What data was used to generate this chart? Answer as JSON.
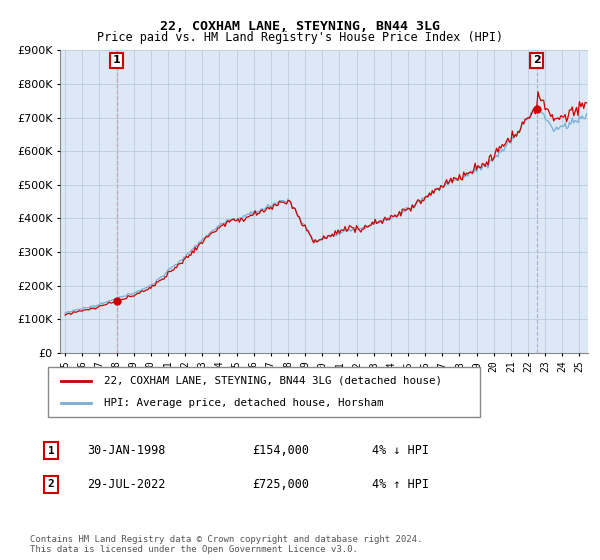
{
  "title": "22, COXHAM LANE, STEYNING, BN44 3LG",
  "subtitle": "Price paid vs. HM Land Registry's House Price Index (HPI)",
  "legend_entry1": "22, COXHAM LANE, STEYNING, BN44 3LG (detached house)",
  "legend_entry2": "HPI: Average price, detached house, Horsham",
  "annotation1_label": "1",
  "annotation1_date": "30-JAN-1998",
  "annotation1_price": "£154,000",
  "annotation1_hpi": "4% ↓ HPI",
  "annotation2_label": "2",
  "annotation2_date": "29-JUL-2022",
  "annotation2_price": "£725,000",
  "annotation2_hpi": "4% ↑ HPI",
  "footnote": "Contains HM Land Registry data © Crown copyright and database right 2024.\nThis data is licensed under the Open Government Licence v3.0.",
  "ylim": [
    0,
    900000
  ],
  "yticks": [
    0,
    100000,
    200000,
    300000,
    400000,
    500000,
    600000,
    700000,
    800000,
    900000
  ],
  "line_color_red": "#cc0000",
  "line_color_blue": "#7aaed6",
  "grid_color": "#bbccdd",
  "plot_bg_color": "#dce8f5",
  "anno_box_color": "#cc0000",
  "anno2_line_color": "#aaaacc",
  "sale1_year": 1998,
  "sale1_month": 1,
  "sale1_price": 154000,
  "sale2_year": 2022,
  "sale2_month": 7,
  "sale2_price": 725000
}
